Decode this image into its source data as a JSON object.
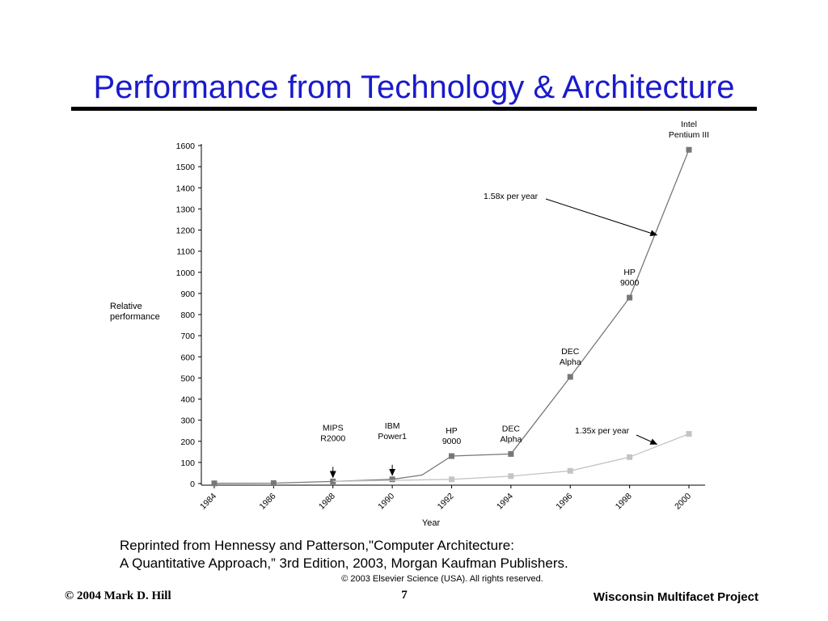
{
  "slide": {
    "title": "Performance from Technology & Architecture",
    "caption_line1": "Reprinted from Hennessy and Patterson,\"Computer Architecture:",
    "caption_line2": "A Quantitative Approach,” 3rd Edition, 2003, Morgan Kaufman Publishers.",
    "copyright": "© 2003 Elsevier Science (USA). All rights reserved.",
    "footer_left": "© 2004 Mark D. Hill",
    "page_number": "7",
    "footer_right": "Wisconsin Multifacet Project"
  },
  "chart_data": {
    "type": "line",
    "xlabel": "Year",
    "ylabel": [
      "Relative",
      "performance"
    ],
    "x_ticks": [
      1984,
      1986,
      1988,
      1990,
      1992,
      1994,
      1996,
      1998,
      2000
    ],
    "y_ticks": [
      0,
      100,
      200,
      300,
      400,
      500,
      600,
      700,
      800,
      900,
      1000,
      1100,
      1200,
      1300,
      1400,
      1500,
      1600
    ],
    "xlim": [
      1984,
      2001
    ],
    "ylim": [
      0,
      1600
    ],
    "grid": false,
    "colors": {
      "upper": "#777777",
      "lower": "#c4c4c4"
    },
    "series": [
      {
        "key": "upper",
        "points": [
          {
            "x": 1984,
            "y": 1,
            "marker": true
          },
          {
            "x": 1986,
            "y": 2,
            "marker": true
          },
          {
            "x": 1988,
            "y": 10,
            "marker": true
          },
          {
            "x": 1990,
            "y": 20,
            "marker": true
          },
          {
            "x": 1991,
            "y": 40,
            "marker": false
          },
          {
            "x": 1992,
            "y": 130,
            "marker": true
          },
          {
            "x": 1994,
            "y": 140,
            "marker": true
          },
          {
            "x": 1996,
            "y": 505,
            "marker": true
          },
          {
            "x": 1998,
            "y": 880,
            "marker": true
          },
          {
            "x": 2000,
            "y": 1580,
            "marker": true
          }
        ]
      },
      {
        "key": "lower",
        "points": [
          {
            "x": 1988,
            "y": 10,
            "marker": false
          },
          {
            "x": 1990,
            "y": 15,
            "marker": false
          },
          {
            "x": 1992,
            "y": 20,
            "marker": true
          },
          {
            "x": 1994,
            "y": 35,
            "marker": true
          },
          {
            "x": 1996,
            "y": 60,
            "marker": true
          },
          {
            "x": 1998,
            "y": 125,
            "marker": true
          },
          {
            "x": 2000,
            "y": 235,
            "marker": true
          }
        ]
      }
    ],
    "annotations": [
      {
        "lines": [
          "MIPS",
          "R2000"
        ],
        "x": 1988,
        "y": 10,
        "arrow": true
      },
      {
        "lines": [
          "IBM",
          "Power1"
        ],
        "x": 1990,
        "y": 20,
        "arrow": true
      },
      {
        "lines": [
          "HP",
          "9000"
        ],
        "x": 1992,
        "y": 130,
        "arrow": false
      },
      {
        "lines": [
          "DEC",
          "Alpha"
        ],
        "x": 1994,
        "y": 140,
        "arrow": false
      },
      {
        "lines": [
          "DEC",
          "Alpha"
        ],
        "x": 1996,
        "y": 505,
        "arrow": false
      },
      {
        "lines": [
          "HP",
          "9000"
        ],
        "x": 1998,
        "y": 880,
        "arrow": false
      },
      {
        "lines": [
          "Intel",
          "Pentium III"
        ],
        "x": 2000,
        "y": 1580,
        "arrow": false
      }
    ],
    "rate_labels": [
      {
        "text": "1.58x per year",
        "series": "upper",
        "x": 1999,
        "y": 1180
      },
      {
        "text": "1.35x per year",
        "series": "lower",
        "x": 1999,
        "y": 190
      }
    ]
  }
}
